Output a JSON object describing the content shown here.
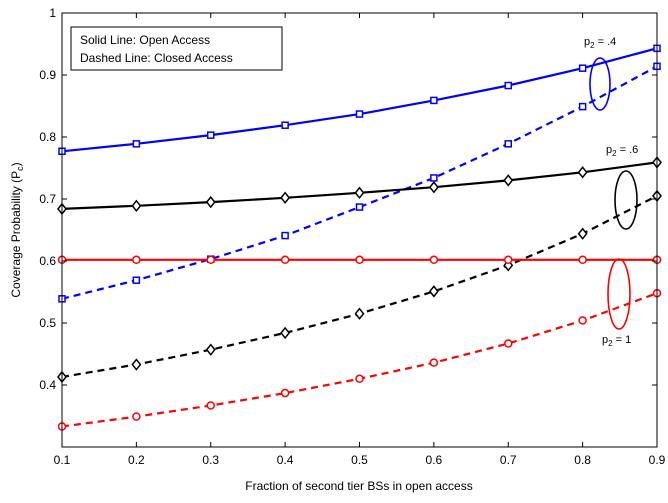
{
  "chart_data": {
    "type": "line",
    "xlabel": "Fraction of second tier BSs in open access",
    "ylabel": {
      "base": "Coverage Probability (P",
      "sub": "c",
      "end": ")"
    },
    "xlim": [
      0.1,
      0.9
    ],
    "ylim": [
      0.3,
      1.0
    ],
    "xticks": [
      0.1,
      0.2,
      0.3,
      0.4,
      0.5,
      0.6,
      0.7,
      0.8,
      0.9
    ],
    "yticks": [
      0.4,
      0.5,
      0.6,
      0.7,
      0.8,
      0.9,
      1.0
    ],
    "x": [
      0.1,
      0.2,
      0.3,
      0.4,
      0.5,
      0.6,
      0.7,
      0.8,
      0.9
    ],
    "grid": false,
    "legend_box": {
      "line1": "Solid Line: Open Access",
      "line2": "Dashed Line: Closed Access",
      "placement": "top-left"
    },
    "annotations": [
      {
        "base": "p",
        "sub": "2",
        "value": " = .4"
      },
      {
        "base": "p",
        "sub": "2",
        "value": " = .6"
      },
      {
        "base": "p",
        "sub": "2",
        "value": " = 1"
      }
    ],
    "series": [
      {
        "group": "p2=.4",
        "access": "open",
        "style": "solid",
        "marker": "square",
        "color": "#0000ff",
        "values": [
          0.777,
          0.789,
          0.803,
          0.819,
          0.837,
          0.859,
          0.883,
          0.911,
          0.943
        ]
      },
      {
        "group": "p2=.4",
        "access": "closed",
        "style": "dashed",
        "marker": "square",
        "color": "#0000ff",
        "values": [
          0.539,
          0.569,
          0.603,
          0.641,
          0.687,
          0.734,
          0.789,
          0.849,
          0.914
        ]
      },
      {
        "group": "p2=.6",
        "access": "open",
        "style": "solid",
        "marker": "diamond",
        "color": "#000000",
        "values": [
          0.684,
          0.689,
          0.695,
          0.702,
          0.71,
          0.719,
          0.73,
          0.743,
          0.759
        ]
      },
      {
        "group": "p2=.6",
        "access": "closed",
        "style": "dashed",
        "marker": "diamond",
        "color": "#000000",
        "values": [
          0.413,
          0.433,
          0.457,
          0.484,
          0.515,
          0.551,
          0.593,
          0.644,
          0.705
        ]
      },
      {
        "group": "p2=1",
        "access": "open",
        "style": "solid",
        "marker": "circle",
        "color": "#ff0000",
        "values": [
          0.602,
          0.602,
          0.602,
          0.602,
          0.602,
          0.602,
          0.602,
          0.602,
          0.602
        ]
      },
      {
        "group": "p2=1",
        "access": "closed",
        "style": "dashed",
        "marker": "circle",
        "color": "#ff0000",
        "values": [
          0.333,
          0.349,
          0.367,
          0.387,
          0.41,
          0.436,
          0.467,
          0.504,
          0.548
        ]
      }
    ]
  }
}
